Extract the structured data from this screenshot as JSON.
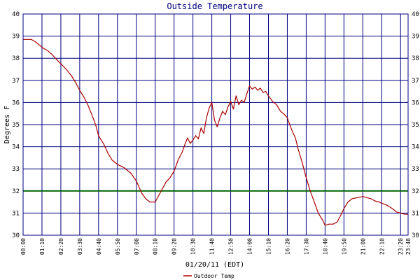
{
  "chart_data": {
    "type": "line",
    "title": "Outside Temperature",
    "xlabel": "01/20/11 (EDT)",
    "ylabel": "Degrees F",
    "ylim": [
      30,
      40
    ],
    "xlim": [
      "00:00",
      "23:48"
    ],
    "y_ticks": [
      30,
      31,
      32,
      33,
      34,
      35,
      36,
      37,
      38,
      39,
      40
    ],
    "x_ticks": [
      "00:00",
      "01:10",
      "02:20",
      "03:30",
      "04:40",
      "05:50",
      "07:00",
      "08:10",
      "09:20",
      "10:30",
      "11:40",
      "12:50",
      "14:00",
      "15:10",
      "16:20",
      "17:30",
      "18:40",
      "19:50",
      "21:00",
      "22:10",
      "23:20",
      "23:48"
    ],
    "grid": true,
    "legend_position": "bottom-center",
    "colors": {
      "series": "#aa0000",
      "reference": "#006400",
      "grid": "#000080",
      "title": "#000080"
    },
    "reference_lines": [
      {
        "y": 32
      }
    ],
    "series": [
      {
        "name": "Outdoor Temp",
        "x": [
          "00:00",
          "00:30",
          "00:45",
          "01:00",
          "01:15",
          "01:30",
          "01:45",
          "02:00",
          "02:20",
          "02:40",
          "03:00",
          "03:15",
          "03:30",
          "03:45",
          "04:00",
          "04:15",
          "04:30",
          "04:40",
          "05:00",
          "05:15",
          "05:30",
          "05:50",
          "06:15",
          "06:40",
          "07:00",
          "07:20",
          "07:35",
          "07:50",
          "08:10",
          "08:30",
          "08:50",
          "09:05",
          "09:20",
          "09:35",
          "09:50",
          "10:00",
          "10:10",
          "10:20",
          "10:30",
          "10:40",
          "10:50",
          "11:00",
          "11:10",
          "11:20",
          "11:30",
          "11:40",
          "11:50",
          "12:00",
          "12:10",
          "12:20",
          "12:30",
          "12:40",
          "12:50",
          "13:00",
          "13:10",
          "13:20",
          "13:30",
          "13:40",
          "13:50",
          "14:00",
          "14:10",
          "14:20",
          "14:30",
          "14:40",
          "14:50",
          "15:00",
          "15:10",
          "15:25",
          "15:40",
          "15:55",
          "16:10",
          "16:20",
          "16:35",
          "16:50",
          "17:00",
          "17:15",
          "17:30",
          "17:45",
          "18:00",
          "18:15",
          "18:30",
          "18:40",
          "18:55",
          "19:10",
          "19:25",
          "19:40",
          "19:50",
          "20:05",
          "20:20",
          "20:40",
          "21:00",
          "21:15",
          "21:30",
          "21:45",
          "22:00",
          "22:10",
          "22:30",
          "22:50",
          "23:05",
          "23:20",
          "23:35",
          "23:48"
        ],
        "values": [
          38.85,
          38.85,
          38.75,
          38.6,
          38.45,
          38.35,
          38.2,
          38.0,
          37.75,
          37.5,
          37.2,
          36.9,
          36.55,
          36.25,
          35.9,
          35.45,
          34.95,
          34.5,
          34.1,
          33.7,
          33.4,
          33.2,
          33.05,
          32.8,
          32.45,
          31.9,
          31.65,
          31.5,
          31.5,
          31.95,
          32.4,
          32.6,
          32.9,
          33.4,
          33.75,
          34.1,
          34.4,
          34.15,
          34.3,
          34.5,
          34.35,
          34.85,
          34.6,
          35.3,
          35.75,
          36.0,
          35.2,
          34.9,
          35.3,
          35.6,
          35.45,
          35.8,
          36.05,
          35.7,
          36.3,
          35.9,
          36.1,
          36.0,
          36.4,
          36.75,
          36.6,
          36.7,
          36.55,
          36.65,
          36.45,
          36.5,
          36.3,
          36.05,
          35.9,
          35.6,
          35.45,
          35.3,
          34.8,
          34.4,
          33.9,
          33.3,
          32.6,
          32.0,
          31.5,
          31.0,
          30.7,
          30.45,
          30.5,
          30.5,
          30.6,
          30.95,
          31.2,
          31.5,
          31.65,
          31.7,
          31.75,
          31.7,
          31.65,
          31.55,
          31.5,
          31.45,
          31.35,
          31.2,
          31.05,
          31.0,
          30.95,
          30.95
        ]
      }
    ]
  }
}
